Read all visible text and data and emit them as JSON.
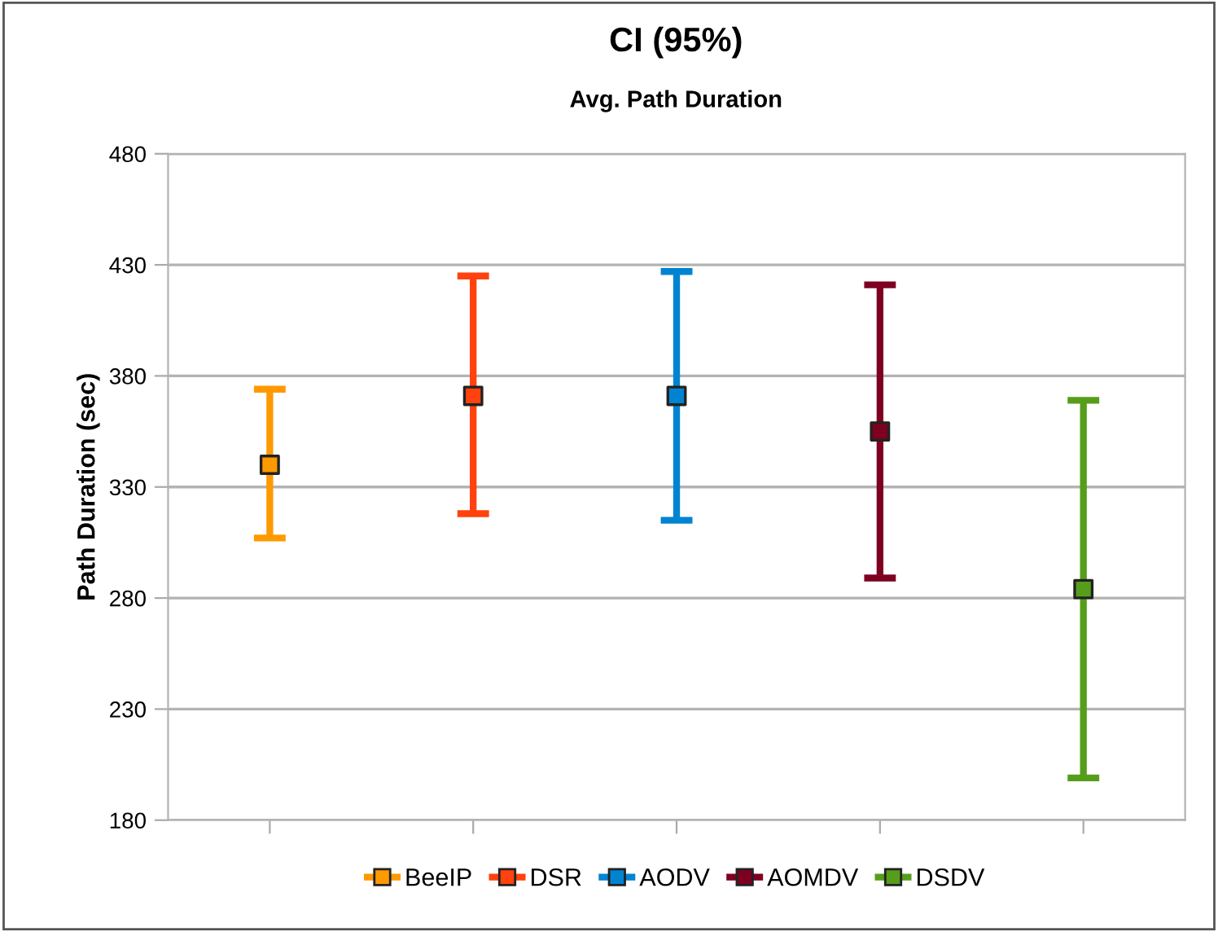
{
  "chart_data": {
    "type": "scatter",
    "title": "CI (95%)",
    "subtitle": "Avg. Path Duration",
    "ylabel": "Path Duration (sec)",
    "categories": [
      null,
      null,
      null,
      null,
      null
    ],
    "series": [
      {
        "name": "BeeIP",
        "color": "#ff9900",
        "values": [
          340,
          null,
          null,
          null,
          null
        ],
        "errors": [
          [
            307,
            374
          ],
          null,
          null,
          null,
          null
        ]
      },
      {
        "name": "DSR",
        "color": "#ff420e",
        "values": [
          null,
          371,
          null,
          null,
          null
        ],
        "errors": [
          null,
          [
            318,
            425
          ],
          null,
          null,
          null
        ]
      },
      {
        "name": "AODV",
        "color": "#0084d1",
        "values": [
          null,
          null,
          371,
          null,
          null
        ],
        "errors": [
          null,
          null,
          [
            315,
            427
          ],
          null,
          null
        ]
      },
      {
        "name": "AOMDV",
        "color": "#7e0021",
        "values": [
          null,
          null,
          null,
          355,
          null
        ],
        "errors": [
          null,
          null,
          null,
          [
            289,
            421
          ],
          null
        ]
      },
      {
        "name": "DSDV",
        "color": "#579d1c",
        "values": [
          null,
          null,
          null,
          null,
          284
        ],
        "errors": [
          null,
          null,
          null,
          null,
          [
            199,
            369
          ]
        ]
      }
    ],
    "ylim": [
      180,
      480
    ],
    "yticks": [
      180,
      230,
      280,
      330,
      380,
      430,
      480
    ],
    "grid": "y",
    "legend": "bottom",
    "marker": "square"
  }
}
